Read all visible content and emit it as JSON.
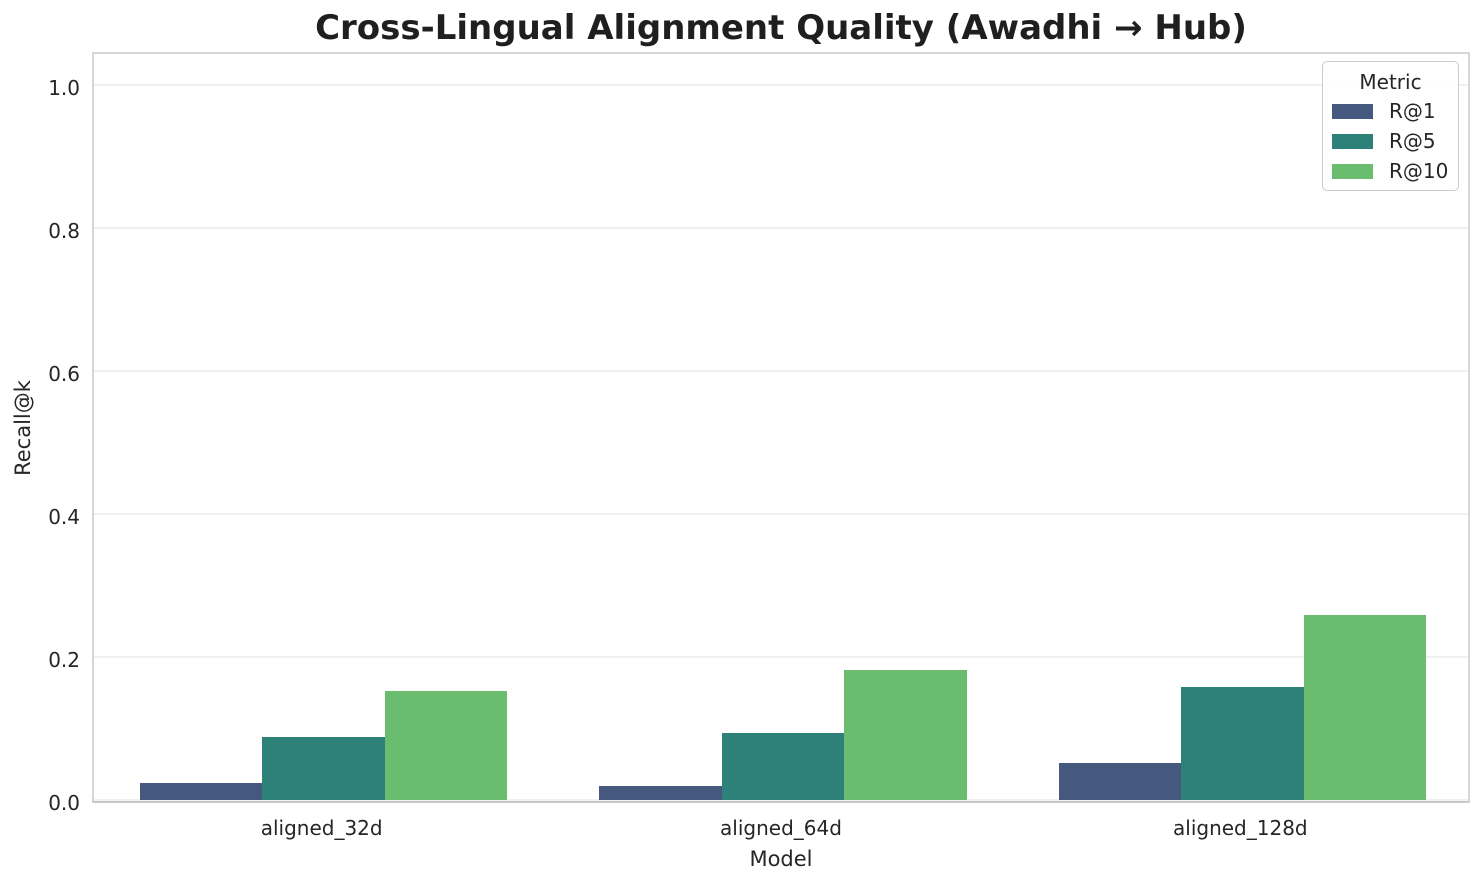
{
  "figure": {
    "background": "#ffffff",
    "text_color": "#262626",
    "grid_color": "#f0f0f0",
    "spine_color": "#d6d6d6"
  },
  "chart_data": {
    "type": "bar",
    "title": "Cross-Lingual Alignment Quality (Awadhi → Hub)",
    "xlabel": "Model",
    "ylabel": "Recall@k",
    "categories": [
      "aligned_32d",
      "aligned_64d",
      "aligned_128d"
    ],
    "series": [
      {
        "name": "R@1",
        "color": "#45597e",
        "values": [
          0.024,
          0.019,
          0.052
        ]
      },
      {
        "name": "R@5",
        "color": "#2e8179",
        "values": [
          0.088,
          0.093,
          0.158
        ]
      },
      {
        "name": "R@10",
        "color": "#6abc6e",
        "values": [
          0.152,
          0.182,
          0.258
        ]
      }
    ],
    "ylim": [
      0,
      1.05
    ],
    "yticks": [
      0.0,
      0.2,
      0.4,
      0.6,
      0.8,
      1.0
    ],
    "ytick_labels": [
      "0.0",
      "0.2",
      "0.4",
      "0.6",
      "0.8",
      "1.0"
    ],
    "grid": true,
    "group_width_fraction": 0.8,
    "legend": {
      "title": "Metric",
      "position": "upper right"
    }
  }
}
